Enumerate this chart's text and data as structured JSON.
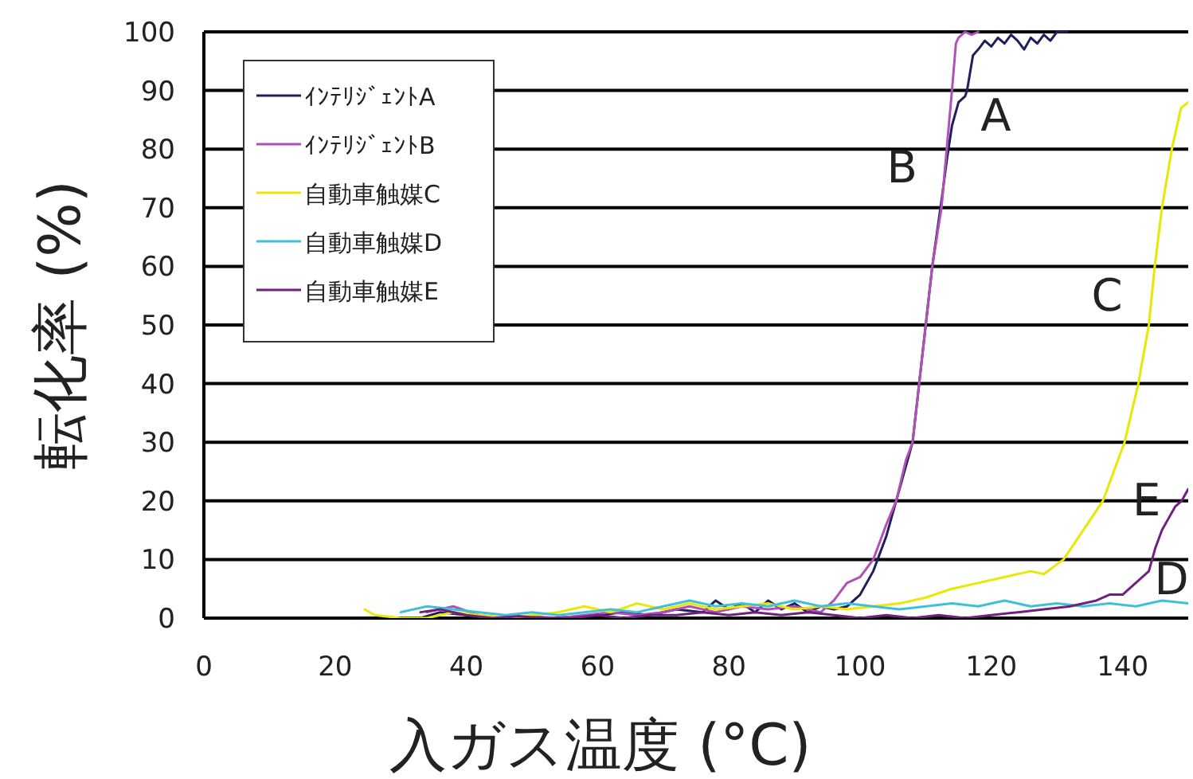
{
  "chart_data": {
    "type": "line",
    "xlabel": "入ガス温度 (°C)",
    "ylabel": "転化率 (%)",
    "xlim": [
      0,
      150
    ],
    "ylim": [
      0,
      100
    ],
    "xticks": [
      0,
      20,
      40,
      60,
      80,
      100,
      120,
      140
    ],
    "yticks": [
      0,
      10,
      20,
      30,
      40,
      50,
      60,
      70,
      80,
      90,
      100
    ],
    "grid": "y",
    "legend": "top left",
    "line_style": "solid",
    "series": [
      {
        "name": "ｲﾝﾃﾘｼﾞｪﾝﾄA",
        "color": "#1f1f5a",
        "x": [
          33,
          36,
          40,
          44,
          48,
          52,
          56,
          60,
          64,
          68,
          72,
          76,
          78,
          80,
          82,
          84,
          86,
          88,
          90,
          92,
          94,
          96,
          98,
          100,
          102,
          104,
          105.5,
          107,
          108,
          109,
          110,
          111,
          112,
          112.5,
          113.2,
          114,
          115,
          116,
          116.3,
          117.2,
          118,
          119,
          120,
          121,
          122,
          123,
          124,
          125,
          126,
          127,
          128,
          129,
          130,
          131.6
        ],
        "values": [
          0,
          1,
          0.5,
          0,
          0.3,
          0,
          0.2,
          0.5,
          1,
          0.5,
          1.5,
          1,
          3,
          1.5,
          2.5,
          1,
          3,
          1.5,
          2.5,
          1,
          2,
          1.5,
          2,
          4,
          8,
          14,
          20,
          26,
          30,
          40,
          50,
          60,
          68,
          72,
          78,
          84,
          88,
          89,
          90,
          96,
          97,
          98.5,
          97.5,
          99,
          98,
          99.5,
          98.5,
          97,
          99,
          98,
          99.5,
          98.5,
          100,
          100
        ]
      },
      {
        "name": "ｲﾝﾃﾘｼﾞｪﾝﾄB",
        "color": "#b050b8",
        "x": [
          34,
          38,
          42,
          46,
          50,
          54,
          58,
          62,
          66,
          70,
          74,
          78,
          82,
          86,
          90,
          94,
          96,
          98,
          100,
          102,
          104,
          105.5,
          107,
          108,
          109,
          110,
          111,
          112.4,
          113.2,
          114,
          114.6,
          115,
          116,
          117,
          118
        ],
        "values": [
          1,
          2,
          0.5,
          0,
          0.3,
          0,
          0.5,
          1,
          0.5,
          1,
          2,
          1,
          2,
          1.5,
          2,
          1,
          3,
          6,
          7,
          10,
          16,
          20,
          27,
          30,
          40,
          50,
          60,
          70,
          80,
          90,
          98,
          99,
          100,
          99.5,
          100
        ]
      },
      {
        "name": "自動車触媒C",
        "color": "#e8e800",
        "x": [
          24.5,
          26,
          30,
          34,
          38,
          42,
          46,
          50,
          54,
          58,
          62,
          66,
          70,
          74,
          78,
          82,
          86,
          90,
          94,
          98,
          102,
          106,
          110,
          114,
          118,
          122,
          126,
          128,
          131,
          134,
          137,
          140.3,
          142.4,
          144,
          144.9,
          146,
          147.5,
          148.9,
          150
        ],
        "values": [
          1.5,
          0.5,
          0,
          0,
          1,
          0.5,
          0,
          0.5,
          1,
          2,
          1,
          2.5,
          1.5,
          2.5,
          1.5,
          2,
          2.5,
          1.5,
          2,
          1.5,
          2,
          2.5,
          3.5,
          5,
          6,
          7,
          8,
          7.5,
          10,
          15,
          20,
          30,
          40,
          50,
          60,
          70,
          80,
          87,
          88
        ]
      },
      {
        "name": "自動車触媒D",
        "color": "#40c0d8",
        "x": [
          30,
          34,
          38,
          42,
          46,
          50,
          54,
          58,
          62,
          66,
          70,
          74,
          78,
          82,
          86,
          90,
          94,
          98,
          102,
          106,
          110,
          114,
          118,
          122,
          126,
          130,
          134,
          138,
          142,
          146,
          150
        ],
        "values": [
          1,
          2,
          1.5,
          1,
          0.5,
          1,
          0.5,
          1,
          1.5,
          1,
          2,
          3,
          2,
          2.5,
          2,
          3,
          2,
          2.5,
          2,
          1.5,
          2,
          2.5,
          2,
          3,
          2,
          2.5,
          2,
          2.5,
          2,
          3,
          2.5
        ]
      },
      {
        "name": "自動車触媒E",
        "color": "#70207f",
        "x": [
          33,
          36,
          40,
          44,
          48,
          52,
          56,
          60,
          64,
          68,
          72,
          76,
          80,
          84,
          88,
          92,
          96,
          100,
          104,
          108,
          112,
          116,
          120,
          124,
          128,
          132,
          136,
          138,
          140,
          142,
          144,
          145,
          146,
          147,
          148,
          149,
          150
        ],
        "values": [
          1,
          1.5,
          0.5,
          0,
          0.3,
          0,
          0,
          0.5,
          0,
          0.5,
          0.5,
          1,
          0.5,
          1,
          0.5,
          1,
          0.5,
          0,
          0.5,
          0,
          0.5,
          0,
          0.5,
          1,
          1.5,
          2,
          3,
          4,
          4,
          6,
          8,
          12,
          15,
          17,
          19,
          20,
          22
        ]
      }
    ],
    "annotations": [
      {
        "text": "A",
        "x": 116.3,
        "y": 90
      },
      {
        "text": "B",
        "x": 113.2,
        "y": 80
      },
      {
        "text": "C",
        "x": 144.9,
        "y": 60
      },
      {
        "text": "D",
        "x": 146,
        "y": 3
      },
      {
        "text": "E",
        "x": 149,
        "y": 20
      }
    ]
  }
}
